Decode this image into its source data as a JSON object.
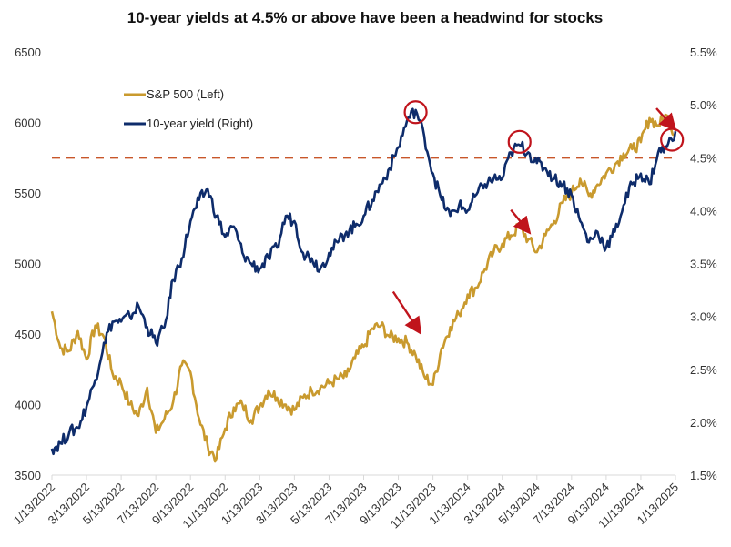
{
  "chart_data": {
    "type": "line",
    "title": "10-year yields at 4.5% or above have been a headwind for stocks",
    "xlabel": "",
    "ylabel_left": "",
    "ylabel_right": "",
    "x_tick_labels": [
      "1/13/2022",
      "3/13/2022",
      "5/13/2022",
      "7/13/2022",
      "9/13/2022",
      "11/13/2022",
      "1/13/2023",
      "3/13/2023",
      "5/13/2023",
      "7/13/2023",
      "9/13/2023",
      "11/13/2023",
      "1/13/2024",
      "3/13/2024",
      "5/13/2024",
      "7/13/2024",
      "9/13/2024",
      "11/13/2024",
      "1/13/2025"
    ],
    "x_range_months": [
      0,
      36
    ],
    "y_left": {
      "range": [
        3500,
        6500
      ],
      "ticks": [
        3500,
        4000,
        4500,
        5000,
        5500,
        6000,
        6500
      ],
      "tick_labels": [
        "3500",
        "4000",
        "4500",
        "5000",
        "5500",
        "6000",
        "6500"
      ]
    },
    "y_right": {
      "range": [
        1.5,
        5.5
      ],
      "ticks": [
        1.5,
        2.0,
        2.5,
        3.0,
        3.5,
        4.0,
        4.5,
        5.0,
        5.5
      ],
      "tick_labels": [
        "1.5%",
        "2.0%",
        "2.5%",
        "3.0%",
        "3.5%",
        "4.0%",
        "4.5%",
        "5.0%",
        "5.5%"
      ]
    },
    "grid": false,
    "legend": {
      "placement": "top-left",
      "entries": [
        "S&P 500 (Left)",
        "10-year yield (Right)"
      ]
    },
    "series": [
      {
        "name": "S&P 500 (Left)",
        "axis": "left",
        "color": "#C99A2E",
        "x_months": [
          0,
          0.5,
          1,
          1.5,
          2,
          2.5,
          3,
          3.5,
          4,
          4.5,
          5,
          5.5,
          6,
          6.5,
          7,
          7.5,
          8,
          8.5,
          9,
          9.5,
          10,
          10.5,
          11,
          11.5,
          12,
          12.5,
          13,
          13.5,
          14,
          14.5,
          15,
          15.5,
          16,
          16.5,
          17,
          17.5,
          18,
          18.5,
          19,
          19.5,
          20,
          20.5,
          21,
          21.5,
          22,
          22.5,
          23,
          23.5,
          24,
          24.5,
          25,
          25.5,
          26,
          26.5,
          27,
          27.5,
          28,
          28.5,
          29,
          29.5,
          30,
          30.5,
          31,
          31.5,
          32,
          32.5,
          33,
          33.5,
          34,
          34.5,
          35,
          35.5,
          36
        ],
        "values": [
          4660,
          4400,
          4380,
          4520,
          4320,
          4560,
          4480,
          4220,
          4150,
          4000,
          3920,
          4120,
          3800,
          3900,
          4020,
          4280,
          4230,
          3900,
          3700,
          3620,
          3830,
          3980,
          4000,
          3890,
          3990,
          4100,
          4050,
          4000,
          3960,
          4050,
          4100,
          4120,
          4150,
          4180,
          4200,
          4330,
          4410,
          4540,
          4560,
          4480,
          4470,
          4440,
          4350,
          4200,
          4140,
          4400,
          4550,
          4640,
          4780,
          4830,
          4960,
          5080,
          5140,
          5200,
          5260,
          5170,
          5080,
          5200,
          5300,
          5430,
          5500,
          5600,
          5480,
          5560,
          5640,
          5700,
          5780,
          5810,
          5860,
          6030,
          5980,
          6050,
          5900,
          5870
        ]
      },
      {
        "name": "10-year yield (Right)",
        "axis": "right",
        "color": "#0E2C6B",
        "x_months": [
          0,
          0.5,
          1,
          1.5,
          2,
          2.5,
          3,
          3.5,
          4,
          4.5,
          5,
          5.5,
          6,
          6.5,
          7,
          7.5,
          8,
          8.5,
          9,
          9.5,
          10,
          10.5,
          11,
          11.5,
          12,
          12.5,
          13,
          13.5,
          14,
          14.5,
          15,
          15.5,
          16,
          16.5,
          17,
          17.5,
          18,
          18.5,
          19,
          19.5,
          20,
          20.5,
          21,
          21.5,
          22,
          22.5,
          23,
          23.5,
          24,
          24.5,
          25,
          25.5,
          26,
          26.5,
          27,
          27.5,
          28,
          28.5,
          29,
          29.5,
          30,
          30.5,
          31,
          31.5,
          32,
          32.5,
          33,
          33.5,
          34,
          34.5,
          35,
          35.5,
          36
        ],
        "values": [
          1.75,
          1.8,
          1.9,
          1.95,
          2.15,
          2.4,
          2.75,
          2.95,
          2.95,
          3.0,
          3.1,
          2.9,
          2.75,
          2.9,
          3.35,
          3.55,
          3.9,
          4.1,
          4.2,
          3.95,
          3.75,
          3.85,
          3.6,
          3.5,
          3.45,
          3.55,
          3.65,
          3.95,
          3.9,
          3.6,
          3.55,
          3.45,
          3.6,
          3.7,
          3.8,
          3.85,
          3.95,
          4.1,
          4.25,
          4.4,
          4.6,
          4.85,
          4.95,
          4.7,
          4.35,
          4.1,
          3.95,
          4.05,
          4.0,
          4.15,
          4.25,
          4.3,
          4.3,
          4.55,
          4.62,
          4.55,
          4.45,
          4.4,
          4.3,
          4.25,
          4.15,
          3.9,
          3.7,
          3.8,
          3.65,
          3.8,
          4.05,
          4.25,
          4.35,
          4.25,
          4.55,
          4.6,
          4.75
        ]
      }
    ],
    "reference_line": {
      "axis": "right",
      "value": 4.5,
      "style": "dashed",
      "color": "#C8562A"
    },
    "annotations": {
      "color": "#C0141C",
      "circles": [
        {
          "x_month": 21.0,
          "axis": "right",
          "y_value": 4.93
        },
        {
          "x_month": 27.0,
          "axis": "right",
          "y_value": 4.65
        },
        {
          "x_month": 35.8,
          "axis": "right",
          "y_value": 4.67
        }
      ],
      "arrows": [
        {
          "from_month": 19.7,
          "from_left": 4800,
          "to_month": 21.2,
          "to_left": 4520
        },
        {
          "from_month": 26.5,
          "from_left": 5380,
          "to_month": 27.5,
          "to_left": 5230
        },
        {
          "from_month": 34.9,
          "from_left": 6100,
          "to_month": 35.9,
          "to_left": 5960
        }
      ]
    }
  }
}
